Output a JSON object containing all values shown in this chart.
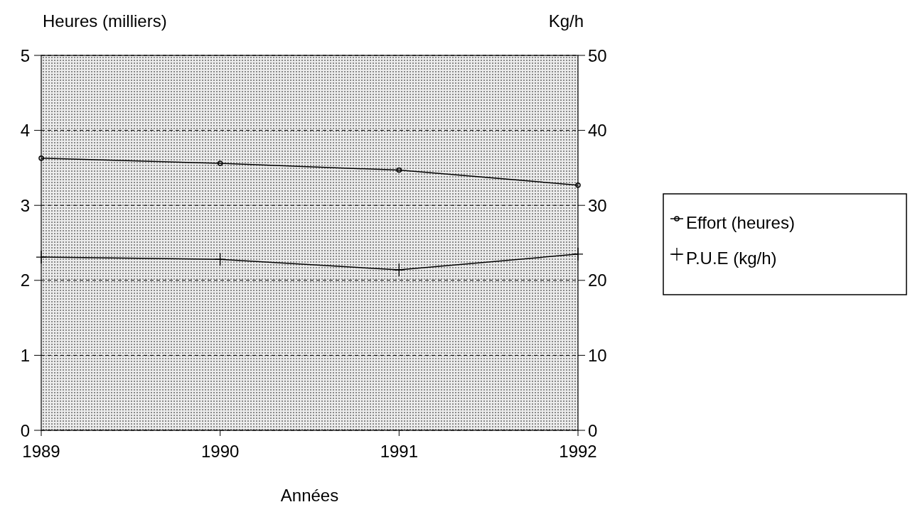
{
  "chart_data": {
    "type": "line",
    "xlabel": "Années",
    "ylabel": "Heures (milliers)",
    "y2label": "Kg/h",
    "x": [
      1989,
      1990,
      1991,
      1992
    ],
    "xlim": [
      1989,
      1992
    ],
    "xticks": [
      1989,
      1990,
      1991,
      1992
    ],
    "ylim": [
      0,
      5
    ],
    "yticks": [
      0,
      1,
      2,
      3,
      4,
      5
    ],
    "y2lim": [
      0,
      50
    ],
    "y2ticks": [
      0,
      10,
      20,
      30,
      40,
      50
    ],
    "grid": "y",
    "legend": "right",
    "line_style": "solid",
    "series": [
      {
        "name": "Effort (heures)",
        "color": "#000000",
        "marker": "circle",
        "values": [
          3.63,
          3.56,
          3.47,
          3.27
        ]
      },
      {
        "name": "P.U.E (kg/h)",
        "color": "#000000",
        "marker": "cross",
        "axis": "y2",
        "values": [
          23.1,
          22.8,
          21.4,
          23.5
        ]
      }
    ]
  }
}
